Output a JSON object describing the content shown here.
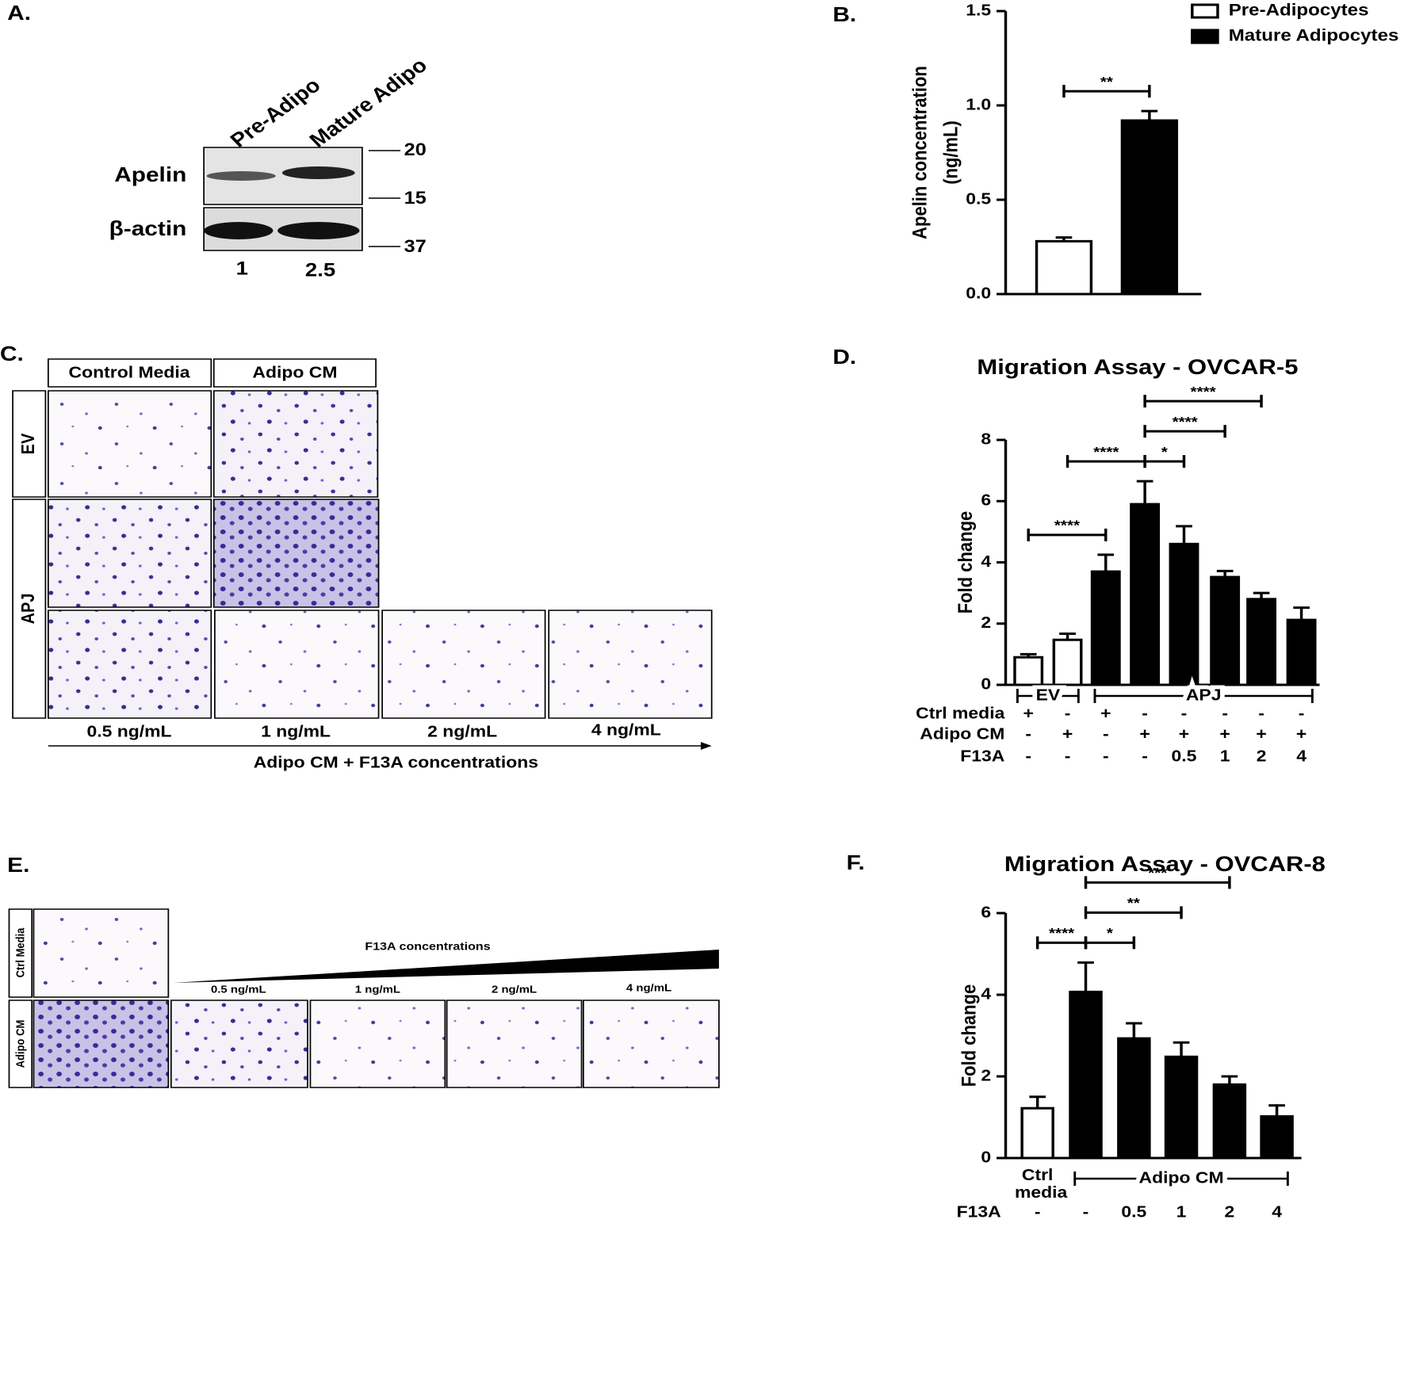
{
  "panel_labels": [
    "A.",
    "B.",
    "C.",
    "D.",
    "E.",
    "F."
  ],
  "blot": {
    "lanes": [
      "Pre-Adipo",
      "Mature Adipo"
    ],
    "rows": [
      "Apelin",
      "β-actin"
    ],
    "markers": [
      20,
      15,
      37
    ],
    "quantification": [
      1,
      2.5
    ]
  },
  "micrographs_c": {
    "columns": [
      "Control Media",
      "Adipo CM"
    ],
    "rows": [
      "EV",
      "APJ"
    ],
    "concentrations": [
      "0.5 ng/mL",
      "1 ng/mL",
      "2 ng/mL",
      "4 ng/mL"
    ],
    "axis_label": "Adipo CM + F13A concentrations"
  },
  "micrographs_e": {
    "rows": [
      "Ctrl Media",
      "Adipo CM"
    ],
    "gradient_label": "F13A concentrations",
    "concentrations": [
      "0.5 ng/mL",
      "1 ng/mL",
      "2 ng/mL",
      "4 ng/mL"
    ]
  },
  "chart_data": [
    {
      "type": "bar",
      "y_label": [
        "Apelin concentration",
        "(ng/mL)"
      ],
      "categories": [
        null
      ],
      "series": [
        {
          "name": "Pre-Adipocytes",
          "color": "#ffffff",
          "values": [
            0.28
          ],
          "errors": [
            0.02
          ]
        },
        {
          "name": "Mature Adipocytes",
          "color": "#000000",
          "values": [
            0.92
          ],
          "errors": [
            0.05
          ]
        }
      ],
      "ylim": [
        0,
        1.5
      ],
      "yticks": [
        {
          "value": 0,
          "label": "0.0"
        },
        {
          "value": 0.5,
          "label": "0.5"
        },
        {
          "value": 1,
          "label": "1.0"
        },
        {
          "value": 1.5,
          "label": "1.5"
        }
      ],
      "legend": "top-right",
      "annotations": [
        {
          "label": "**",
          "from": 0,
          "to": 1
        }
      ]
    },
    {
      "type": "bar",
      "title": "Migration Assay - OVCAR-5",
      "y_label": "Fold change",
      "series": [
        {
          "values": [
            0.9,
            1.47,
            3.7,
            5.9,
            4.6,
            3.52,
            2.8,
            2.12
          ],
          "errors": [
            0.1,
            0.2,
            0.55,
            0.75,
            0.58,
            0.2,
            0.2,
            0.4
          ],
          "colors": [
            "#ffffff",
            "#ffffff",
            "#000000",
            "#000000",
            "#000000",
            "#000000",
            "#000000",
            "#000000"
          ]
        }
      ],
      "ylim": [
        0,
        8
      ],
      "yticks": [
        0,
        2,
        4,
        6,
        8
      ],
      "groups": [
        {
          "label": "EV",
          "from": 0,
          "to": 1
        },
        {
          "label": "APJ",
          "from": 2,
          "to": 7
        }
      ],
      "conditions": [
        {
          "name": "Ctrl media",
          "values": [
            "+",
            "-",
            "+",
            "-",
            "-",
            "-",
            "-",
            "-"
          ]
        },
        {
          "name": "Adipo CM",
          "values": [
            "-",
            "+",
            "-",
            "+",
            "+",
            "+",
            "+",
            "+"
          ]
        },
        {
          "name": "F13A",
          "values": [
            "-",
            "-",
            "-",
            "-",
            "0.5",
            "1",
            "2",
            "4"
          ]
        }
      ],
      "annotations": [
        {
          "label": "****",
          "from": 0,
          "to": 2
        },
        {
          "label": "****",
          "from": 1,
          "to": 3
        },
        {
          "label": "*",
          "from": 3,
          "to": 4
        },
        {
          "label": "****",
          "from": 3,
          "to": 5
        },
        {
          "label": "****",
          "from": 3,
          "to": 6
        }
      ]
    },
    {
      "type": "bar",
      "title": "Migration Assay - OVCAR-8",
      "y_label": "Fold change",
      "categories": [
        "Ctrl media",
        null,
        null,
        null,
        null,
        null
      ],
      "series": [
        {
          "values": [
            1.22,
            4.07,
            2.93,
            2.48,
            1.8,
            1.02
          ],
          "errors": [
            0.28,
            0.72,
            0.37,
            0.35,
            0.2,
            0.27
          ],
          "colors": [
            "#ffffff",
            "#000000",
            "#000000",
            "#000000",
            "#000000",
            "#000000"
          ]
        }
      ],
      "ylim": [
        0,
        6
      ],
      "yticks": [
        0,
        2,
        4,
        6
      ],
      "groups": [
        {
          "label": "Adipo CM",
          "from": 1,
          "to": 5
        }
      ],
      "conditions": [
        {
          "name": "F13A",
          "values": [
            "-",
            "-",
            "0.5",
            "1",
            "2",
            "4"
          ]
        }
      ],
      "annotations": [
        {
          "label": "****",
          "from": 0,
          "to": 1
        },
        {
          "label": "*",
          "from": 1,
          "to": 2
        },
        {
          "label": "**",
          "from": 1,
          "to": 3
        },
        {
          "label": "***",
          "from": 1,
          "to": 4
        }
      ]
    }
  ]
}
